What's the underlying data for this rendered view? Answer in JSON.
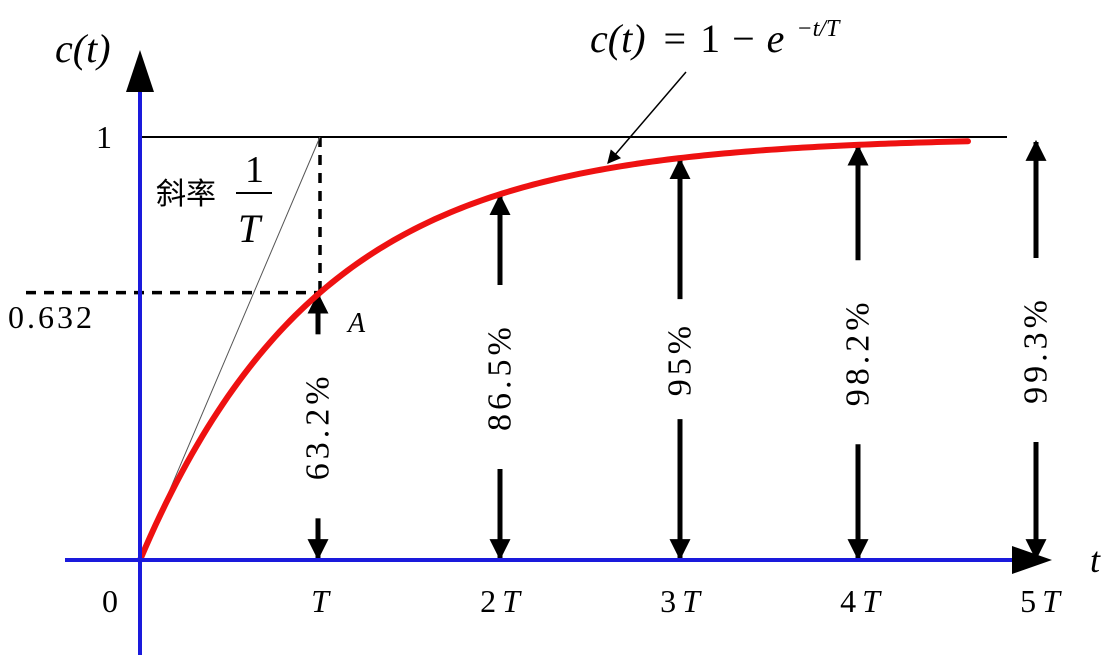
{
  "chart_data": {
    "type": "line",
    "title": "",
    "ylabel": "c(t)",
    "xlabel": "t",
    "xlim": [
      0,
      5.8
    ],
    "ylim": [
      0,
      1.18
    ],
    "grid": false,
    "equation": {
      "lhs": "c(t)",
      "eq": "=",
      "one": "1",
      "minus": "−",
      "base": "e",
      "exponent": "−t/T"
    },
    "series": [
      {
        "function": "1-exp(-t/T)",
        "t_range": [
          0,
          4.6
        ],
        "color": "#ee1111"
      }
    ],
    "asymptote": {
      "y": 1,
      "label": "1"
    },
    "y_marker": {
      "label": "0.632",
      "value": 0.632
    },
    "point_A": {
      "label": "A",
      "x": 1,
      "y": 0.632
    },
    "tangent": {
      "label_prefix": "斜率",
      "numerator": "1",
      "denominator": "T",
      "from": [
        0,
        0
      ],
      "to": [
        1,
        1
      ]
    },
    "origin_label": "0",
    "x_ticks": [
      {
        "x": 1,
        "coef": "",
        "sym": "T"
      },
      {
        "x": 2,
        "coef": "2",
        "sym": "T"
      },
      {
        "x": 3,
        "coef": "3",
        "sym": "T"
      },
      {
        "x": 4,
        "coef": "4",
        "sym": "T"
      },
      {
        "x": 5,
        "coef": "5",
        "sym": "T"
      }
    ],
    "annotations": [
      {
        "x": 1,
        "label": "63.2%",
        "value": 0.632
      },
      {
        "x": 2,
        "label": "86.5%",
        "value": 0.865
      },
      {
        "x": 3,
        "label": "95%",
        "value": 0.95
      },
      {
        "x": 4,
        "label": "98.2%",
        "value": 0.982
      },
      {
        "x": 5,
        "label": "99.3%",
        "value": 0.993
      }
    ],
    "colors": {
      "axes": "#1a1adc",
      "curve": "#ee1111",
      "ink": "#000000"
    }
  }
}
